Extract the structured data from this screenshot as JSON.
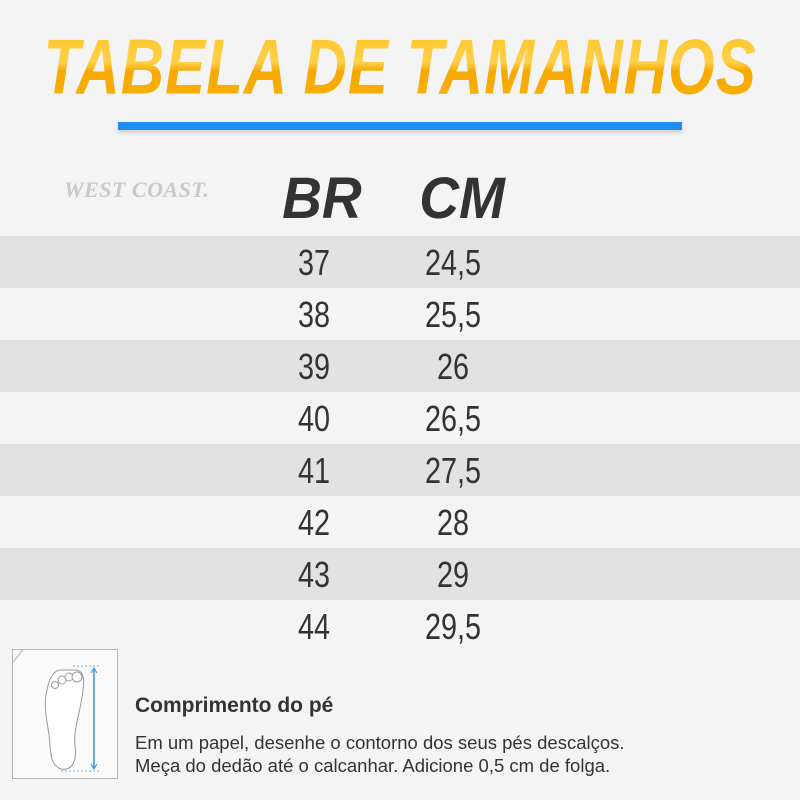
{
  "title": "TABELA DE TAMANHOS",
  "brand": "WEST COAST.",
  "headers": {
    "br": "BR",
    "cm": "CM"
  },
  "rows": [
    {
      "br": "37",
      "cm": "24,5"
    },
    {
      "br": "38",
      "cm": "25,5"
    },
    {
      "br": "39",
      "cm": "26"
    },
    {
      "br": "40",
      "cm": "26,5"
    },
    {
      "br": "41",
      "cm": "27,5"
    },
    {
      "br": "42",
      "cm": "28"
    },
    {
      "br": "43",
      "cm": "29"
    },
    {
      "br": "44",
      "cm": "29,5"
    }
  ],
  "footer": {
    "title": "Comprimento do pé",
    "line1": "Em um papel, desenhe o contorno dos seus pés descalços.",
    "line2": "Meça do dedão até o calcanhar. Adicione 0,5 cm de folga."
  },
  "colors": {
    "title": "#fdb813",
    "accent_bar": "#1e8ff0",
    "stripe": "#e2e2e2",
    "text": "#333333"
  }
}
